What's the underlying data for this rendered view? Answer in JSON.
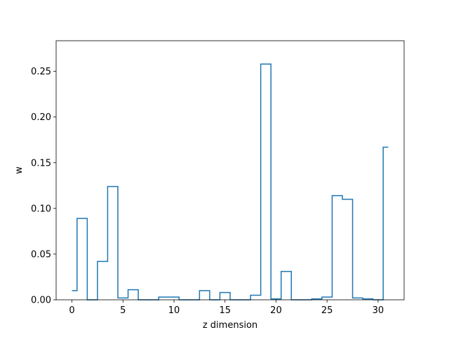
{
  "chart_data": {
    "type": "line",
    "style": "step",
    "xlabel": "z dimension",
    "ylabel": "w",
    "xlim": [
      -1.55,
      32.55
    ],
    "ylim": [
      0,
      0.2835
    ],
    "xticks": [
      0,
      5,
      10,
      15,
      20,
      25,
      30
    ],
    "yticks": [
      0.0,
      0.05,
      0.1,
      0.15,
      0.2,
      0.25
    ],
    "ytick_labels": [
      "0.00",
      "0.05",
      "0.10",
      "0.15",
      "0.20",
      "0.25"
    ],
    "grid": false,
    "line_color": "#1f77b4",
    "series": [
      {
        "x": [
          0,
          1,
          2,
          3,
          4,
          5,
          6,
          7,
          8,
          9,
          10,
          11,
          12,
          13,
          14,
          15,
          16,
          17,
          18,
          19,
          20,
          21,
          22,
          23,
          24,
          25,
          26,
          27,
          28,
          29,
          30,
          31
        ],
        "values": [
          0.01,
          0.089,
          0.0,
          0.042,
          0.124,
          0.002,
          0.011,
          0.0,
          0.0,
          0.003,
          0.003,
          0.0,
          0.0,
          0.01,
          0.0,
          0.008,
          0.0,
          0.0,
          0.005,
          0.258,
          0.001,
          0.031,
          0.0,
          0.0,
          0.001,
          0.003,
          0.114,
          0.11,
          0.002,
          0.001,
          0.0,
          0.167
        ]
      }
    ]
  }
}
